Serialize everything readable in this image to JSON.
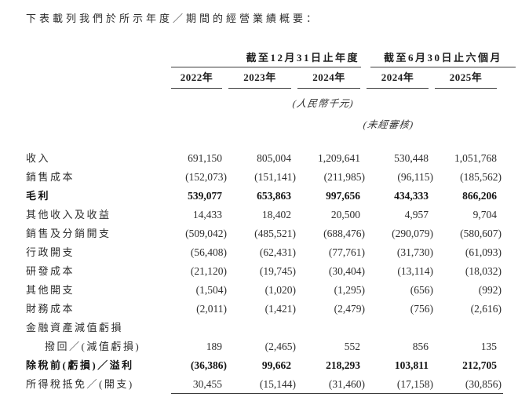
{
  "title": "下表載列我們於所示年度／期間的經營業績概要：",
  "table": {
    "col_groups": [
      {
        "label": "截至12月31日止年度",
        "span": 3
      },
      {
        "label": "截至6月30日止六個月",
        "span": 2
      }
    ],
    "year_headers": [
      "2022年",
      "2023年",
      "2024年",
      "2024年",
      "2025年"
    ],
    "unit_note": "(人民幣千元)",
    "audit_note": "(未經審核)",
    "rows": [
      {
        "label": "收入",
        "values": [
          "691,150",
          "805,004",
          "1,209,641",
          "530,448",
          "1,051,768"
        ]
      },
      {
        "label": "銷售成本",
        "values": [
          "(152,073)",
          "(151,141)",
          "(211,985)",
          "(96,115)",
          "(185,562)"
        ]
      },
      {
        "label": "毛利",
        "bold": true,
        "values": [
          "539,077",
          "653,863",
          "997,656",
          "434,333",
          "866,206"
        ]
      },
      {
        "label": "其他收入及收益",
        "values": [
          "14,433",
          "18,402",
          "20,500",
          "4,957",
          "9,704"
        ]
      },
      {
        "label": "銷售及分銷開支",
        "values": [
          "(509,042)",
          "(485,521)",
          "(688,476)",
          "(290,079)",
          "(580,607)"
        ]
      },
      {
        "label": "行政開支",
        "values": [
          "(56,408)",
          "(62,431)",
          "(77,761)",
          "(31,730)",
          "(61,093)"
        ]
      },
      {
        "label": "研發成本",
        "values": [
          "(21,120)",
          "(19,745)",
          "(30,404)",
          "(13,114)",
          "(18,032)"
        ]
      },
      {
        "label": "其他開支",
        "values": [
          "(1,504)",
          "(1,020)",
          "(1,295)",
          "(656)",
          "(992)"
        ]
      },
      {
        "label": "財務成本",
        "values": [
          "(2,011)",
          "(1,421)",
          "(2,479)",
          "(756)",
          "(2,616)"
        ]
      },
      {
        "label": "金融資產減值虧損",
        "values": [
          "",
          "",
          "",
          "",
          ""
        ]
      },
      {
        "label": "撥回／(減值虧損)",
        "indent": true,
        "values": [
          "189",
          "(2,465)",
          "552",
          "856",
          "135"
        ]
      },
      {
        "label": "除稅前(虧損)／溢利",
        "bold": true,
        "values": [
          "(36,386)",
          "99,662",
          "218,293",
          "103,811",
          "212,705"
        ]
      },
      {
        "label": "所得稅抵免／(開支)",
        "underline": true,
        "values": [
          "30,455",
          "(15,144)",
          "(31,460)",
          "(17,158)",
          "(30,856)"
        ]
      }
    ]
  }
}
